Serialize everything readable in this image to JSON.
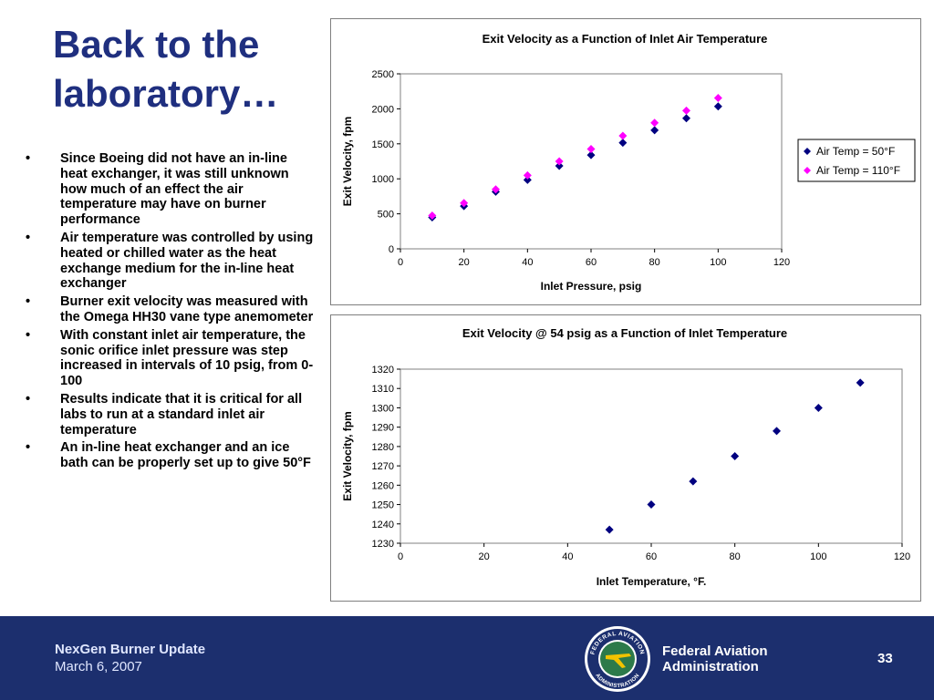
{
  "slide": {
    "title": "Back to the laboratory…",
    "bullet_char": "•",
    "bullets": [
      "Since Boeing did not have an in-line heat exchanger, it was still unknown how much of an effect the air temperature may have on burner performance",
      "Air temperature was controlled by using heated or chilled water as the heat exchange medium for the in-line heat exchanger",
      "Burner exit velocity was measured with the Omega HH30 vane type anemometer",
      "With constant inlet air temperature, the sonic orifice inlet pressure was step increased in intervals of 10 psig, from 0-100",
      "Results indicate that it is critical for all labs to run at a standard inlet air temperature",
      "An in-line heat exchanger and an ice bath can be properly set up to give 50°F"
    ]
  },
  "footer": {
    "project": "NexGen Burner Update",
    "date": "March 6, 2007",
    "agency_line1": "Federal Aviation",
    "agency_line2": "Administration",
    "page_number": "33",
    "seal_text_top": "FEDERAL AVIATION",
    "seal_text_bottom": "ADMINISTRATION"
  },
  "colors": {
    "title": "#1f2f7f",
    "footer_bg": "#1c2f6e",
    "series_50": "#000080",
    "series_110": "#ff00ff"
  },
  "chart_data": [
    {
      "type": "scatter",
      "title": "Exit Velocity as a Function of Inlet Air Temperature",
      "xlabel": "Inlet Pressure, psig",
      "ylabel": "Exit Velocity, fpm",
      "xlim": [
        0,
        120
      ],
      "ylim": [
        0,
        2500
      ],
      "xticks": [
        "0",
        "20",
        "40",
        "60",
        "80",
        "100",
        "120"
      ],
      "yticks": [
        "0",
        "500",
        "1000",
        "1500",
        "2000",
        "2500"
      ],
      "grid": false,
      "legend": "right",
      "series": [
        {
          "name": "Air Temp = 50°F",
          "marker": "diamond",
          "color": "#000080",
          "x": [
            10,
            20,
            30,
            40,
            50,
            60,
            70,
            80,
            90,
            100
          ],
          "y": [
            450,
            610,
            815,
            985,
            1185,
            1340,
            1515,
            1695,
            1865,
            2035
          ]
        },
        {
          "name": "Air Temp = 110°F",
          "marker": "diamond",
          "color": "#ff00ff",
          "x": [
            10,
            20,
            30,
            40,
            50,
            60,
            70,
            80,
            90,
            100
          ],
          "y": [
            475,
            655,
            850,
            1050,
            1250,
            1425,
            1615,
            1800,
            1975,
            2155
          ]
        }
      ]
    },
    {
      "type": "scatter",
      "title": "Exit Velocity @ 54 psig as a Function of Inlet Temperature",
      "xlabel": "Inlet Temperature, °F.",
      "ylabel": "Exit Velocity, fpm",
      "xlim": [
        0,
        120
      ],
      "ylim": [
        1230,
        1320
      ],
      "xticks": [
        "0",
        "20",
        "40",
        "60",
        "80",
        "100",
        "120"
      ],
      "yticks": [
        "1230",
        "1240",
        "1250",
        "1260",
        "1270",
        "1280",
        "1290",
        "1300",
        "1310",
        "1320"
      ],
      "grid": false,
      "series": [
        {
          "marker": "diamond",
          "color": "#000080",
          "x": [
            50,
            60,
            70,
            80,
            90,
            100,
            110
          ],
          "y": [
            1237,
            1250,
            1262,
            1275,
            1288,
            1300,
            1313
          ]
        }
      ]
    }
  ]
}
